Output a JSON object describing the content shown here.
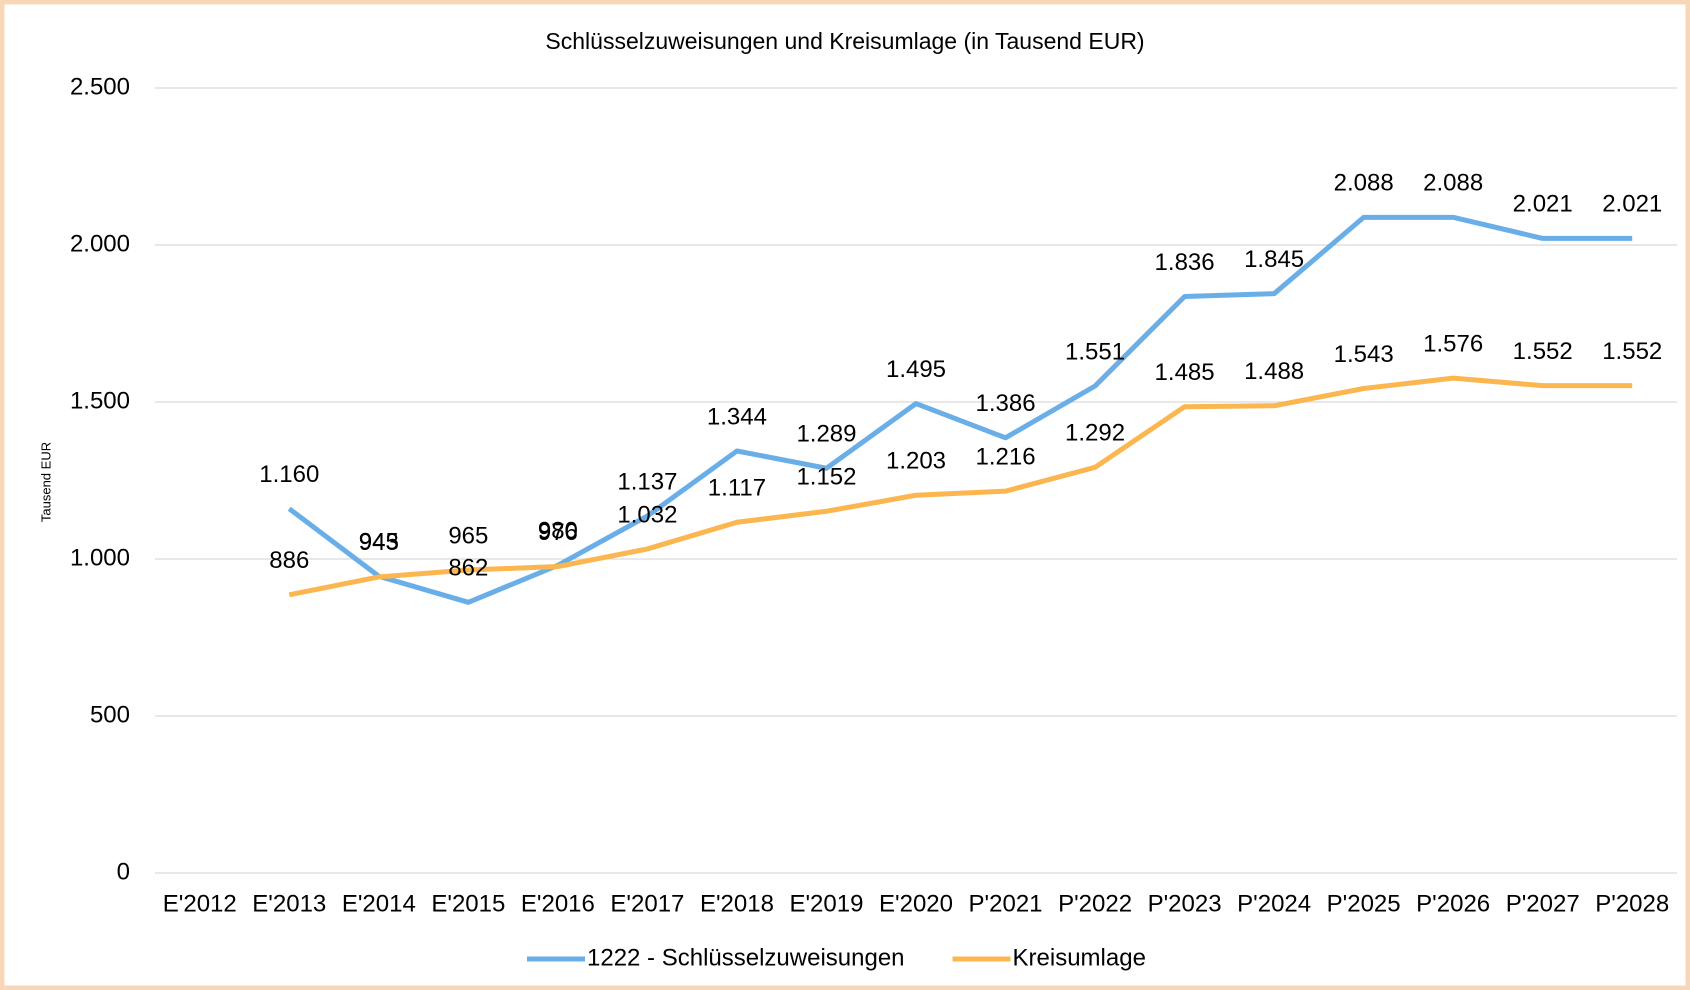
{
  "chart_data": {
    "type": "line",
    "title": "Schlüsselzuweisungen und Kreisumlage (in Tausend EUR)",
    "y_label": "Tausend EUR",
    "categories": [
      "E'2012",
      "E'2013",
      "E'2014",
      "E'2015",
      "E'2016",
      "E'2017",
      "E'2018",
      "E'2019",
      "E'2020",
      "P'2021",
      "P'2022",
      "P'2023",
      "P'2024",
      "P'2025",
      "P'2026",
      "P'2027",
      "P'2028"
    ],
    "series": [
      {
        "name": "1222 - Schlüsselzuweisungen",
        "color": "#6aaee8",
        "values": [
          null,
          1160,
          945,
          862,
          980,
          1137,
          1344,
          1289,
          1495,
          1386,
          1551,
          1836,
          1845,
          2088,
          2088,
          2021,
          2021
        ],
        "value_labels": [
          null,
          "1.160",
          "945",
          "862",
          "980",
          "1.137",
          "1.344",
          "1.289",
          "1.495",
          "1.386",
          "1.551",
          "1.836",
          "1.845",
          "2.088",
          "2.088",
          "2.021",
          "2.021"
        ]
      },
      {
        "name": "Kreisumlage",
        "color": "#fbb650",
        "values": [
          null,
          886,
          943,
          965,
          976,
          1032,
          1117,
          1152,
          1203,
          1216,
          1292,
          1485,
          1488,
          1543,
          1576,
          1552,
          1552
        ],
        "value_labels": [
          null,
          "886",
          "943",
          "965",
          "976",
          "1.032",
          "1.117",
          "1.152",
          "1.203",
          "1.216",
          "1.292",
          "1.485",
          "1.488",
          "1.543",
          "1.576",
          "1.552",
          "1.552"
        ]
      }
    ],
    "ylim": [
      0,
      2500
    ],
    "yticks": [
      0,
      500,
      {
        "value": 1000,
        "label": "1.000"
      },
      {
        "value": 1500,
        "label": "1.500"
      },
      {
        "value": 2000,
        "label": "2.000"
      },
      {
        "value": 2500,
        "label": "2.500"
      }
    ],
    "grid": true,
    "legend": "bottom"
  }
}
